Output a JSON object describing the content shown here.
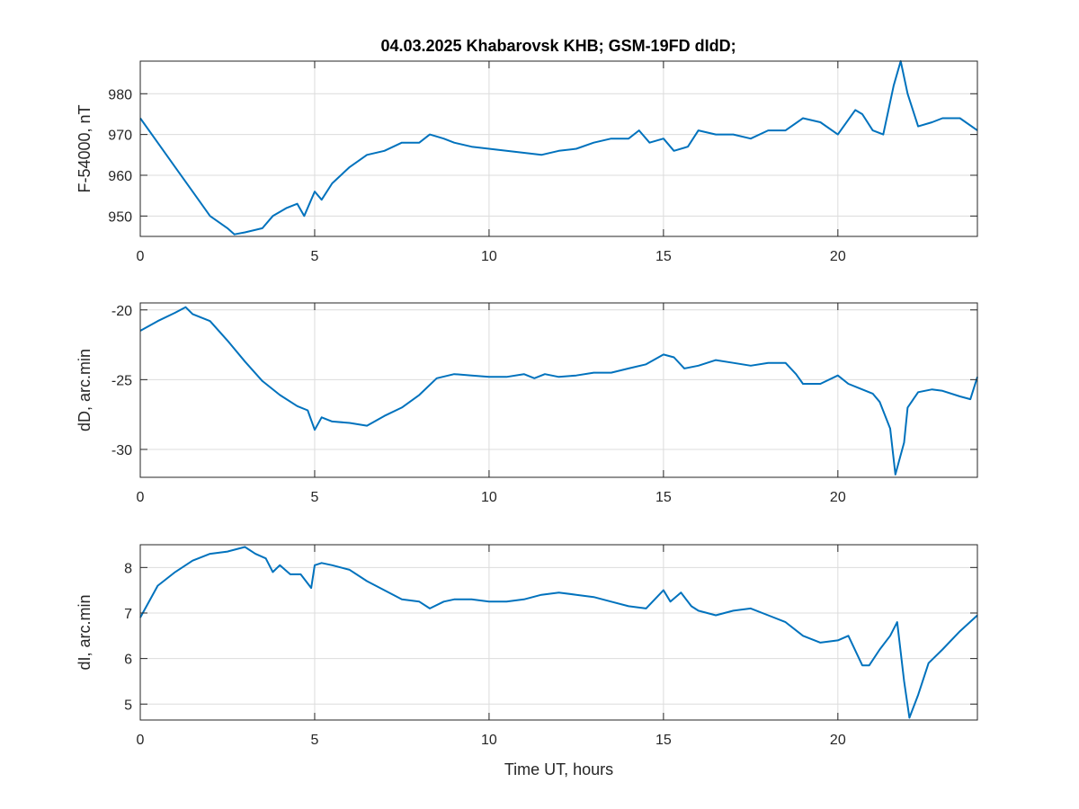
{
  "figure": {
    "title": "04.03.2025  Khabarovsk KHB; GSM-19FD dIdD;"
  },
  "chart_data": [
    {
      "type": "line",
      "ylabel": "F-54000, nT",
      "xlabel": "",
      "xlim": [
        0,
        24
      ],
      "ylim": [
        945,
        988
      ],
      "xticks": [
        0,
        5,
        10,
        15,
        20
      ],
      "yticks": [
        950,
        960,
        970,
        980
      ],
      "grid": true,
      "color": "#0072bd",
      "series": [
        {
          "x": [
            0,
            0.5,
            1,
            1.5,
            2,
            2.5,
            2.7,
            3,
            3.5,
            3.8,
            4,
            4.2,
            4.5,
            4.7,
            5,
            5.2,
            5.5,
            6,
            6.5,
            7,
            7.5,
            8,
            8.3,
            8.7,
            9,
            9.5,
            10,
            10.5,
            11,
            11.5,
            12,
            12.5,
            13,
            13.5,
            14,
            14.3,
            14.6,
            15,
            15.3,
            15.7,
            16,
            16.5,
            17,
            17.5,
            18,
            18.5,
            19,
            19.5,
            20,
            20.5,
            20.7,
            21,
            21.3,
            21.6,
            21.8,
            22,
            22.3,
            22.7,
            23,
            23.5,
            24
          ],
          "y": [
            974,
            968,
            962,
            956,
            950,
            947,
            945.5,
            946,
            947,
            950,
            951,
            952,
            953,
            950,
            956,
            954,
            958,
            962,
            965,
            966,
            968,
            968,
            970,
            969,
            968,
            967,
            966.5,
            966,
            965.5,
            965,
            966,
            966.5,
            968,
            969,
            969,
            971,
            968,
            969,
            966,
            967,
            971,
            970,
            970,
            969,
            971,
            971,
            974,
            973,
            970,
            976,
            975,
            971,
            970,
            982,
            988,
            980,
            972,
            973,
            974,
            974,
            971
          ]
        }
      ]
    },
    {
      "type": "line",
      "ylabel": "dD, arc.min",
      "xlabel": "",
      "xlim": [
        0,
        24
      ],
      "ylim": [
        -32,
        -19.5
      ],
      "xticks": [
        0,
        5,
        10,
        15,
        20
      ],
      "yticks": [
        -20,
        -25,
        -30
      ],
      "grid": true,
      "color": "#0072bd",
      "series": [
        {
          "x": [
            0,
            0.5,
            1,
            1.3,
            1.5,
            1.8,
            2,
            2.5,
            3,
            3.5,
            4,
            4.5,
            4.8,
            5,
            5.2,
            5.5,
            6,
            6.5,
            7,
            7.5,
            8,
            8.5,
            9,
            9.5,
            10,
            10.5,
            11,
            11.3,
            11.6,
            12,
            12.5,
            13,
            13.5,
            14,
            14.5,
            15,
            15.3,
            15.6,
            16,
            16.5,
            17,
            17.5,
            18,
            18.5,
            18.8,
            19,
            19.5,
            20,
            20.3,
            20.6,
            21,
            21.2,
            21.5,
            21.65,
            21.9,
            22,
            22.3,
            22.7,
            23,
            23.5,
            23.8,
            24
          ],
          "y": [
            -21.5,
            -20.8,
            -20.2,
            -19.8,
            -20.3,
            -20.6,
            -20.8,
            -22.2,
            -23.7,
            -25.1,
            -26.1,
            -26.9,
            -27.2,
            -28.6,
            -27.7,
            -28,
            -28.1,
            -28.3,
            -27.6,
            -27,
            -26.1,
            -24.9,
            -24.6,
            -24.7,
            -24.8,
            -24.8,
            -24.6,
            -24.9,
            -24.6,
            -24.8,
            -24.7,
            -24.5,
            -24.5,
            -24.2,
            -23.9,
            -23.2,
            -23.4,
            -24.2,
            -24,
            -23.6,
            -23.8,
            -24,
            -23.8,
            -23.8,
            -24.6,
            -25.3,
            -25.3,
            -24.7,
            -25.3,
            -25.6,
            -26,
            -26.6,
            -28.5,
            -31.8,
            -29.5,
            -27,
            -25.9,
            -25.7,
            -25.8,
            -26.2,
            -26.4,
            -24.8
          ]
        }
      ]
    },
    {
      "type": "line",
      "ylabel": "dI, arc.min",
      "xlabel": "Time UT, hours",
      "xlim": [
        0,
        24
      ],
      "ylim": [
        4.65,
        8.5
      ],
      "xticks": [
        0,
        5,
        10,
        15,
        20
      ],
      "yticks": [
        8,
        7,
        6,
        5
      ],
      "grid": true,
      "color": "#0072bd",
      "series": [
        {
          "x": [
            0,
            0.5,
            1,
            1.5,
            2,
            2.5,
            3,
            3.3,
            3.6,
            3.8,
            4,
            4.3,
            4.6,
            4.9,
            5,
            5.2,
            5.5,
            6,
            6.5,
            7,
            7.5,
            8,
            8.3,
            8.7,
            9,
            9.5,
            10,
            10.5,
            11,
            11.5,
            12,
            12.5,
            13,
            13.5,
            14,
            14.5,
            15,
            15.2,
            15.5,
            15.8,
            16,
            16.5,
            17,
            17.5,
            18,
            18.5,
            19,
            19.5,
            20,
            20.3,
            20.7,
            20.9,
            21.2,
            21.5,
            21.7,
            21.9,
            22.05,
            22.3,
            22.6,
            23,
            23.5,
            24
          ],
          "y": [
            6.9,
            7.6,
            7.9,
            8.15,
            8.3,
            8.35,
            8.45,
            8.3,
            8.2,
            7.9,
            8.05,
            7.85,
            7.85,
            7.55,
            8.05,
            8.1,
            8.05,
            7.95,
            7.7,
            7.5,
            7.3,
            7.25,
            7.1,
            7.25,
            7.3,
            7.3,
            7.25,
            7.25,
            7.3,
            7.4,
            7.45,
            7.4,
            7.35,
            7.25,
            7.15,
            7.1,
            7.5,
            7.25,
            7.45,
            7.15,
            7.05,
            6.95,
            7.05,
            7.1,
            6.95,
            6.8,
            6.5,
            6.35,
            6.4,
            6.5,
            5.85,
            5.85,
            6.2,
            6.5,
            6.8,
            5.5,
            4.7,
            5.2,
            5.9,
            6.2,
            6.6,
            6.95
          ]
        }
      ]
    }
  ]
}
